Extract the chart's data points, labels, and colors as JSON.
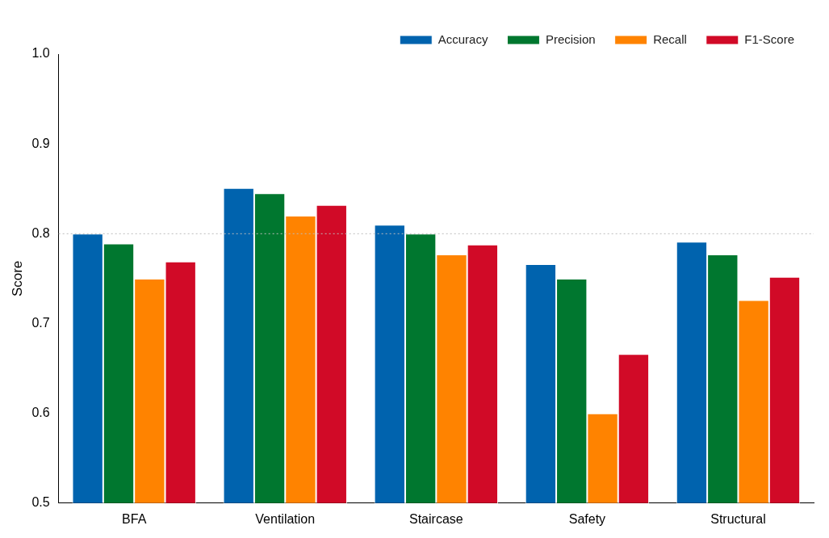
{
  "chart_data": {
    "type": "bar",
    "ylabel": "Score",
    "categories": [
      "BFA",
      "Ventilation",
      "Staircase",
      "Safety",
      "Structural"
    ],
    "series": [
      {
        "name": "Accuracy",
        "color": "#0063ae",
        "values": [
          0.8,
          0.851,
          0.81,
          0.766,
          0.791
        ]
      },
      {
        "name": "Precision",
        "color": "#00772f",
        "values": [
          0.789,
          0.845,
          0.8,
          0.75,
          0.777
        ]
      },
      {
        "name": "Recall",
        "color": "#ff8300",
        "values": [
          0.75,
          0.82,
          0.777,
          0.6,
          0.726
        ]
      },
      {
        "name": "F1-Score",
        "color": "#d10a27",
        "values": [
          0.769,
          0.832,
          0.788,
          0.666,
          0.752
        ]
      }
    ],
    "ylim": [
      0.5,
      1.0
    ],
    "yticks": [
      0.5,
      0.6,
      0.7,
      0.8,
      0.9,
      {
        "value": 1.0,
        "label": "1.0"
      }
    ],
    "ref_lines": [
      {
        "axis": "y",
        "value": 0.8,
        "color": "#bbbbbb",
        "line_style": "dotted"
      }
    ],
    "grid": false,
    "legend": "top right"
  }
}
